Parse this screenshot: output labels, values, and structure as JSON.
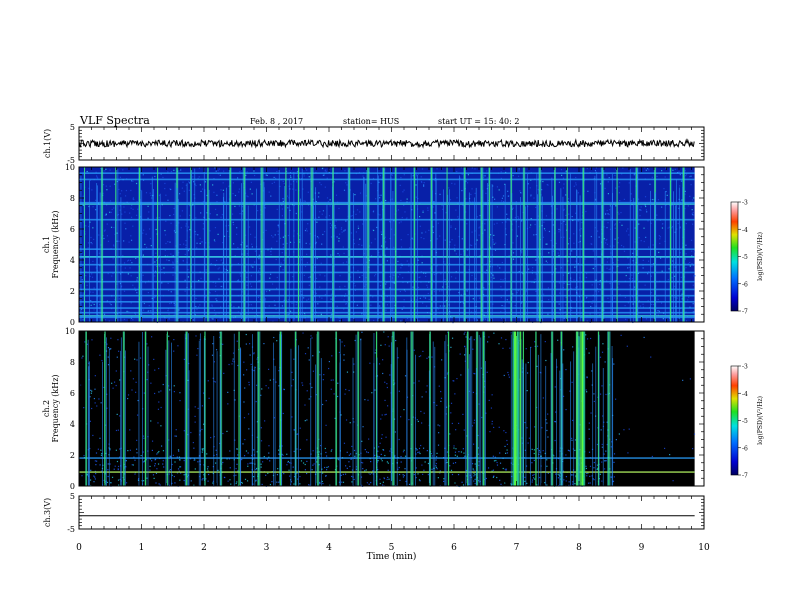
{
  "header": {
    "title": "VLF Spectra",
    "date": "Feb. 8 , 2017",
    "station": "station= HUS",
    "start": "start UT = 15: 40: 2"
  },
  "chart_data": {
    "type": "heatmap",
    "x_axis": {
      "label": "Time (min)",
      "range": [
        0,
        10
      ],
      "ticks": [
        "0",
        "1",
        "2",
        "3",
        "4",
        "5",
        "6",
        "7",
        "8",
        "9",
        "10"
      ]
    },
    "panels": [
      {
        "id": "ch1-waveform",
        "type": "line",
        "ylabel": "ch.1(V)",
        "ylim": [
          -5,
          5
        ],
        "yticks": [
          "5",
          "-5"
        ],
        "trace": {
          "level": 0,
          "noise_amplitude": 0.35,
          "color": "#000000",
          "end_time": 9.85
        }
      },
      {
        "id": "ch1-spectrogram",
        "type": "heatmap",
        "ylabel_line1": "ch.1",
        "ylabel_line2": "Frequency (kHz)",
        "ylim": [
          0,
          10
        ],
        "yticks": [
          "0",
          "2",
          "4",
          "6",
          "8",
          "10"
        ],
        "data_end_time": 9.85,
        "background_color": "#0820a8",
        "horizontal_lines_khz": [
          0.3,
          0.6,
          0.9,
          1.3,
          1.7,
          2.1,
          2.6,
          3.2,
          3.7,
          4.2,
          4.7,
          6.6,
          7.7,
          9.2,
          9.6
        ],
        "bright_lines_khz": [
          0.4,
          4.2,
          7.6
        ],
        "bursts_min": [
          0.08,
          0.35,
          0.58,
          0.95,
          1.25,
          1.55,
          1.78,
          2.05,
          2.4,
          2.62,
          2.9,
          3.3,
          3.5,
          3.7,
          4.05,
          4.3,
          4.6,
          4.85,
          5.05,
          5.35,
          5.62,
          5.88,
          6.15,
          6.42,
          6.55,
          6.9,
          7.1,
          7.35,
          7.6,
          7.8,
          8.05,
          8.35,
          8.6,
          8.9,
          9.2,
          9.45,
          9.65
        ],
        "colorbar": {
          "label": "log(PSD)(V²/Hz)",
          "ticks": [
            "-3",
            "-4",
            "-5",
            "-6",
            "-7"
          ],
          "range": [
            -7,
            -3
          ]
        }
      },
      {
        "id": "ch2-spectrogram",
        "type": "heatmap",
        "ylabel_line1": "ch.2",
        "ylabel_line2": "Frequency (kHz)",
        "ylim": [
          0,
          10
        ],
        "yticks": [
          "0",
          "2",
          "4",
          "6",
          "8",
          "10"
        ],
        "data_end_time": 9.85,
        "background_color": "#000000",
        "quiet_region_min": [
          8.6,
          9.85
        ],
        "horizontal_lines_khz": [
          0.9,
          1.8
        ],
        "bright_lines_khz": [
          0.9
        ],
        "bursts_min": [
          0.1,
          0.4,
          0.7,
          1.05,
          1.4,
          1.7,
          2.0,
          2.25,
          2.55,
          2.85,
          3.2,
          3.45,
          3.8,
          4.1,
          4.45,
          4.75,
          5.0,
          5.3,
          5.6,
          5.9,
          6.2,
          6.35,
          6.45,
          6.95,
          7.0,
          7.1,
          7.3,
          7.55,
          7.7,
          7.95,
          8.05,
          8.3,
          8.45
        ],
        "intense_blocks_min": [
          [
            6.93,
            7.08
          ],
          [
            7.95,
            8.1
          ]
        ],
        "colorbar": {
          "label": "log(PSD)(V²/Hz)",
          "ticks": [
            "-3",
            "-4",
            "-5",
            "-6",
            "-7"
          ],
          "range": [
            -7,
            -3
          ]
        }
      },
      {
        "id": "ch3-waveform",
        "type": "line",
        "ylabel": "ch.3(V)",
        "ylim": [
          -5,
          5
        ],
        "yticks": [
          "5",
          "-5"
        ],
        "trace": {
          "level": -1,
          "noise_amplitude": 0.0,
          "color": "#000000",
          "end_time": 9.85
        }
      }
    ]
  }
}
